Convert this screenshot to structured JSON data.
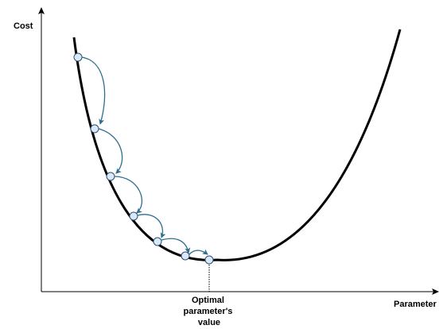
{
  "axes": {
    "y_label": "Cost",
    "x_label": "Parameter"
  },
  "optimum": {
    "label_lines": [
      "Optimal",
      "parameter's",
      "value"
    ]
  },
  "colors": {
    "curve": "#000000",
    "axis": "#000000",
    "step_arrow": "#2f6e8e",
    "point_fill": "#dae8fc",
    "point_stroke": "#2f4f6f",
    "guide_line": "#000000"
  },
  "steps": {
    "count": 7
  }
}
